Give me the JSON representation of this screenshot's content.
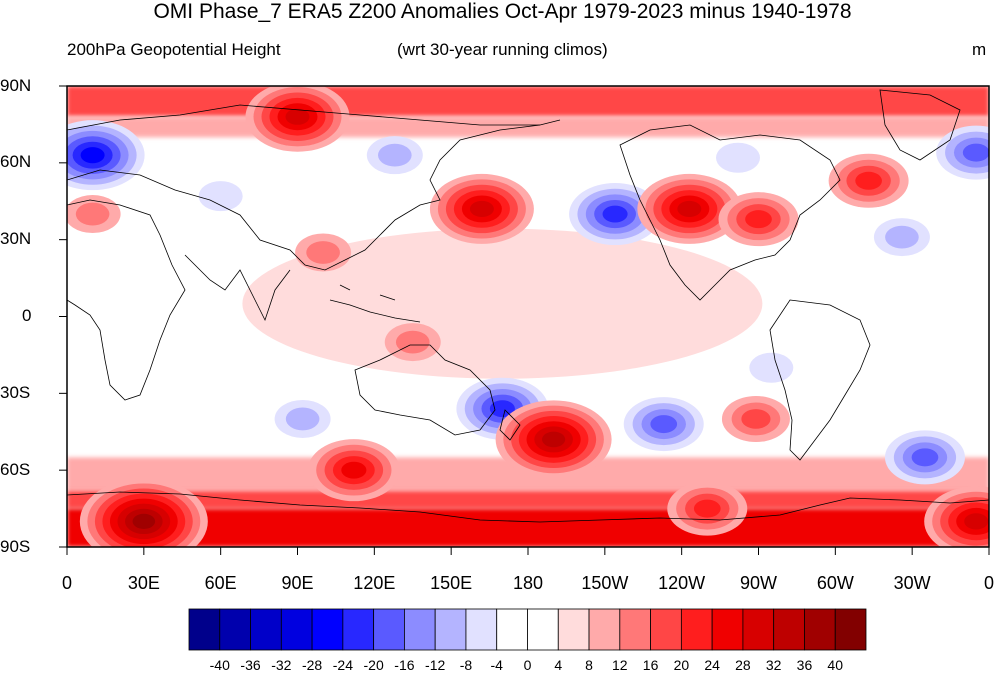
{
  "title": "OMI Phase_7 ERA5 Z200 Anomalies Oct-Apr 1979-2023 minus 1940-1978",
  "left_subtitle": "200hPa Geopotential Height",
  "center_subtitle": "(wrt 30-year running climos)",
  "units": "m",
  "lat_labels": [
    "90N",
    "60N",
    "30N",
    "0",
    "30S",
    "60S",
    "90S"
  ],
  "lon_labels": [
    "0",
    "30E",
    "60E",
    "90E",
    "120E",
    "150E",
    "180",
    "150W",
    "120W",
    "90W",
    "60W",
    "30W",
    "0"
  ],
  "colorbar": {
    "labels": [
      "-40",
      "-36",
      "-32",
      "-28",
      "-24",
      "-20",
      "-16",
      "-12",
      "-8",
      "-4",
      "0",
      "4",
      "8",
      "12",
      "16",
      "20",
      "24",
      "28",
      "32",
      "36",
      "40"
    ],
    "colors": [
      "#00008B",
      "#0000AD",
      "#0000C9",
      "#0000E0",
      "#0000FF",
      "#2828FF",
      "#5A5AFF",
      "#8C8CFF",
      "#B4B4FF",
      "#E1E1FF",
      "#FFFFFF",
      "#FFFFFF",
      "#FFDCDC",
      "#FFAAAA",
      "#FF7878",
      "#FF4646",
      "#FF1E1E",
      "#F00000",
      "#D70000",
      "#BE0000",
      "#A00000",
      "#820000"
    ]
  },
  "chart_data": {
    "type": "heatmap",
    "title": "OMI Phase_7 ERA5 Z200 Anomalies Oct-Apr 1979-2023 minus 1940-1978",
    "subtitle": "200hPa Geopotential Height",
    "units": "m",
    "lon_range": [
      0,
      360
    ],
    "lat_range": [
      -90,
      90
    ],
    "features": [
      {
        "lon": 162,
        "lat": 42,
        "value": 28
      },
      {
        "lon": 214,
        "lat": 40,
        "value": -24
      },
      {
        "lon": 243,
        "lat": 42,
        "value": 28
      },
      {
        "lon": 270,
        "lat": 38,
        "value": 20
      },
      {
        "lon": 313,
        "lat": 53,
        "value": 20
      },
      {
        "lon": 326,
        "lat": 31,
        "value": -12
      },
      {
        "lon": 10,
        "lat": 63,
        "value": -28
      },
      {
        "lon": 355,
        "lat": 64,
        "value": -20
      },
      {
        "lon": 128,
        "lat": 63,
        "value": -12
      },
      {
        "lon": 262,
        "lat": 62,
        "value": -8
      },
      {
        "lon": 60,
        "lat": 47,
        "value": -8
      },
      {
        "lon": 90,
        "lat": 78,
        "value": 28
      },
      {
        "lon": 10,
        "lat": 40,
        "value": 12
      },
      {
        "lon": 100,
        "lat": 25,
        "value": 12
      },
      {
        "lon": 135,
        "lat": -10,
        "value": 12
      },
      {
        "lon": 170,
        "lat": -36,
        "value": -24
      },
      {
        "lon": 190,
        "lat": -48,
        "value": 32
      },
      {
        "lon": 233,
        "lat": -42,
        "value": -20
      },
      {
        "lon": 269,
        "lat": -40,
        "value": 16
      },
      {
        "lon": 275,
        "lat": -20,
        "value": -8
      },
      {
        "lon": 335,
        "lat": -55,
        "value": -20
      },
      {
        "lon": 92,
        "lat": -40,
        "value": -12
      },
      {
        "lon": 112,
        "lat": -60,
        "value": 24
      },
      {
        "lon": 30,
        "lat": -80,
        "value": 36
      },
      {
        "lon": 355,
        "lat": -80,
        "value": 28
      },
      {
        "lon": 250,
        "lat": -75,
        "value": 20
      }
    ]
  }
}
